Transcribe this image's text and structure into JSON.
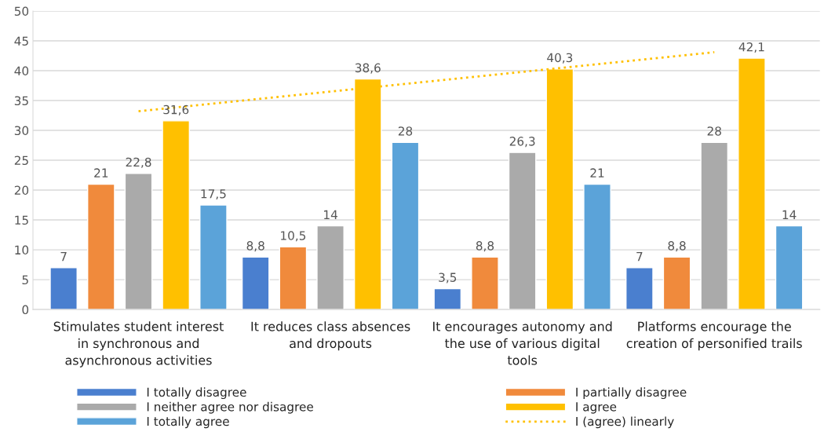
{
  "chart_data": {
    "type": "bar",
    "categories": [
      "Stimulates student interest in synchronous and asynchronous activities",
      "It reduces class absences and dropouts",
      "It encourages autonomy and the use of various digital tools",
      "Platforms encourage the creation of personified trails"
    ],
    "series": [
      {
        "name": "I totally disagree",
        "color": "#4a7fcf",
        "values": [
          7,
          8.8,
          3.5,
          7
        ],
        "value_labels": [
          "7",
          "8,8",
          "3,5",
          "7"
        ]
      },
      {
        "name": "I partially disagree",
        "color": "#f08a3c",
        "values": [
          21,
          10.5,
          8.8,
          8.8
        ],
        "value_labels": [
          "21",
          "10,5",
          "8,8",
          "8,8"
        ]
      },
      {
        "name": "I neither agree nor disagree",
        "color": "#aaaaaa",
        "values": [
          22.8,
          14,
          26.3,
          28
        ],
        "value_labels": [
          "22,8",
          "14",
          "26,3",
          "28"
        ]
      },
      {
        "name": "I agree",
        "color": "#ffc000",
        "values": [
          31.6,
          38.6,
          40.3,
          42.1
        ],
        "value_labels": [
          "31,6",
          "38,6",
          "40,3",
          "42,1"
        ]
      },
      {
        "name": "I totally agree",
        "color": "#5ba3d9",
        "values": [
          17.5,
          28,
          21,
          14
        ],
        "value_labels": [
          "17,5",
          "28",
          "21",
          "14"
        ]
      },
      {
        "name": "I (agree) linearly",
        "type": "line",
        "color": "#ffc000",
        "line_style": "dotted",
        "marker": "none",
        "values": [
          33.2,
          36.5,
          39.8,
          43.1
        ]
      }
    ],
    "ylim": [
      0,
      50
    ],
    "yticks": [
      0,
      5,
      10,
      15,
      20,
      25,
      30,
      35,
      40,
      45,
      50
    ],
    "grid": "y",
    "legend": "bottom"
  }
}
